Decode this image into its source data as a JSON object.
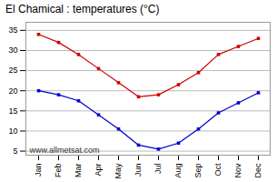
{
  "chart_data": {
    "type": "line",
    "title": "El Chamical : temperatures (°C)",
    "categories": [
      "Jan",
      "Feb",
      "Mar",
      "Apr",
      "May",
      "Jun",
      "Jul",
      "Aug",
      "Sep",
      "Oct",
      "Nov",
      "Dec"
    ],
    "series": [
      {
        "color": "#cc0000",
        "values": [
          34,
          32,
          29,
          25.5,
          22,
          18.5,
          19,
          21.5,
          24.5,
          29,
          31,
          33
        ]
      },
      {
        "color": "#0000cc",
        "values": [
          20,
          19,
          17.5,
          14,
          10.5,
          6.5,
          5.5,
          7,
          10.5,
          14.5,
          17,
          19.5
        ]
      }
    ],
    "marker": "square",
    "ylim": [
      4,
      37
    ],
    "yticks": [
      5,
      10,
      15,
      20,
      25,
      30,
      35
    ],
    "grid": true,
    "annotations": [
      "www.allmetsat.com"
    ]
  }
}
